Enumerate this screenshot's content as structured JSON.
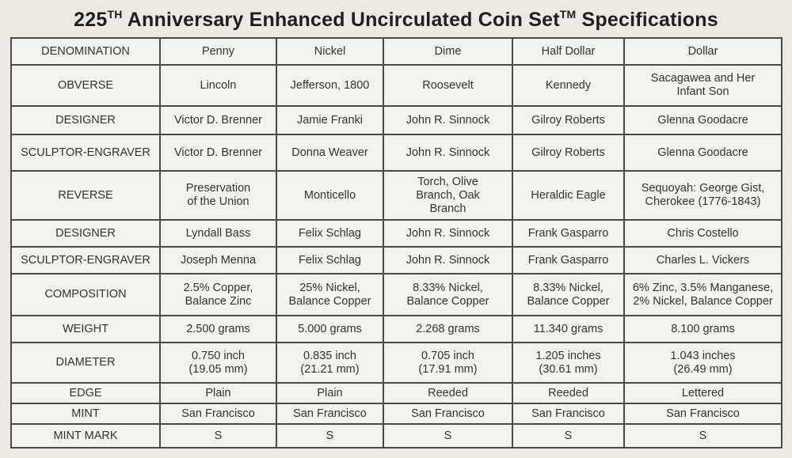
{
  "title": {
    "main": "225",
    "th": "TH",
    "rest": " Anniversary Enhanced Uncirculated Coin Set",
    "tm": "TM",
    "end": " Specifications"
  },
  "table": {
    "rows": [
      {
        "label": "DENOMINATION",
        "cells": [
          "Penny",
          "Nickel",
          "Dime",
          "Half Dollar",
          "Dollar"
        ]
      },
      {
        "label": "OBVERSE",
        "cells": [
          "Lincoln",
          "Jefferson, 1800",
          "Roosevelt",
          "Kennedy",
          "Sacagawea and Her\nInfant Son"
        ]
      },
      {
        "label": "DESIGNER",
        "cells": [
          "Victor D. Brenner",
          "Jamie Franki",
          "John R. Sinnock",
          "Gilroy Roberts",
          "Glenna Goodacre"
        ]
      },
      {
        "label": "SCULPTOR-ENGRAVER",
        "cells": [
          "Victor D. Brenner",
          "Donna Weaver",
          "John R. Sinnock",
          "Gilroy Roberts",
          "Glenna Goodacre"
        ]
      },
      {
        "label": "REVERSE",
        "cells": [
          "Preservation\nof the Union",
          "Monticello",
          "Torch, Olive\nBranch, Oak\nBranch",
          "Heraldic Eagle",
          "Sequoyah: George Gist,\nCherokee (1776-1843)"
        ]
      },
      {
        "label": "DESIGNER",
        "cells": [
          "Lyndall Bass",
          "Felix Schlag",
          "John R. Sinnock",
          "Frank Gasparro",
          "Chris Costello"
        ]
      },
      {
        "label": "SCULPTOR-ENGRAVER",
        "cells": [
          "Joseph Menna",
          "Felix Schlag",
          "John R. Sinnock",
          "Frank Gasparro",
          "Charles L. Vickers"
        ]
      },
      {
        "label": "COMPOSITION",
        "cells": [
          "2.5% Copper,\nBalance Zinc",
          "25% Nickel,\nBalance Copper",
          "8.33% Nickel,\nBalance Copper",
          "8.33% Nickel,\nBalance Copper",
          "6% Zinc, 3.5% Manganese,\n2% Nickel, Balance Copper"
        ]
      },
      {
        "label": "WEIGHT",
        "cells": [
          "2.500 grams",
          "5.000 grams",
          "2.268 grams",
          "11.340 grams",
          "8.100 grams"
        ]
      },
      {
        "label": "DIAMETER",
        "cells": [
          "0.750 inch\n(19.05 mm)",
          "0.835 inch\n(21.21 mm)",
          "0.705 inch\n(17.91 mm)",
          "1.205 inches\n(30.61 mm)",
          "1.043 inches\n(26.49 mm)"
        ]
      },
      {
        "label": "EDGE",
        "cells": [
          "Plain",
          "Plain",
          "Reeded",
          "Reeded",
          "Lettered"
        ]
      },
      {
        "label": "MINT",
        "cells": [
          "San Francisco",
          "San Francisco",
          "San Francisco",
          "San Francisco",
          "San Francisco"
        ]
      },
      {
        "label": "MINT MARK",
        "cells": [
          "S",
          "S",
          "S",
          "S",
          "S"
        ]
      }
    ]
  }
}
